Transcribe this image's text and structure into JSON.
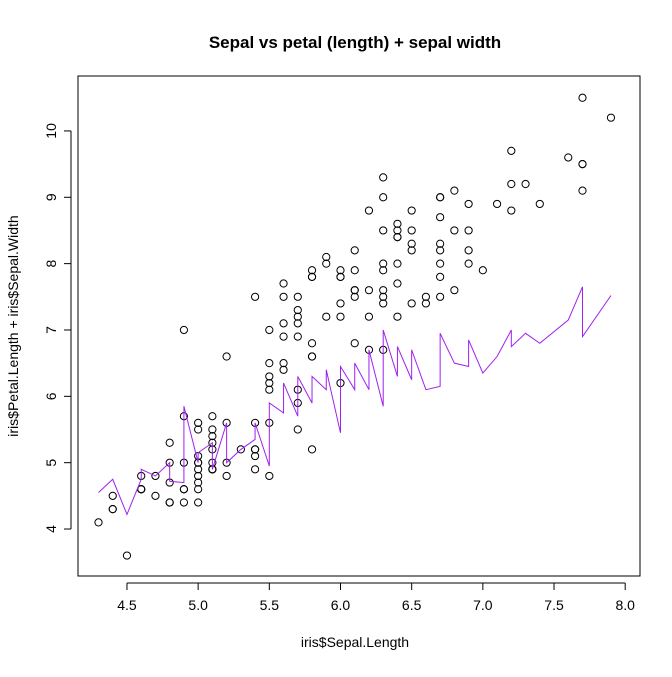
{
  "chart_data": {
    "type": "scatter",
    "title": "Sepal vs petal (length) + sepal width",
    "x_label": "iris$Sepal.Length",
    "y_label": "iris$Petal.Length + iris$Sepal.Width",
    "xlim": [
      4.156,
      8.104
    ],
    "ylim": [
      3.292,
      10.828
    ],
    "xticks": [
      4.5,
      {
        "value": 5,
        "label": "5.0"
      },
      5.5,
      {
        "value": 6,
        "label": "6.0"
      },
      6.5,
      {
        "value": 7,
        "label": "7.0"
      },
      7.5,
      {
        "value": 8,
        "label": "8.0"
      }
    ],
    "yticks": [
      4,
      5,
      6,
      7,
      8,
      9,
      10
    ],
    "series": [
      {
        "mark": "points",
        "color": "#000000",
        "x": [
          5.1,
          4.9,
          4.7,
          4.6,
          5.0,
          5.4,
          4.6,
          5.0,
          4.4,
          4.9,
          5.4,
          4.8,
          4.8,
          4.3,
          5.8,
          5.7,
          5.4,
          5.1,
          5.7,
          5.1,
          5.4,
          5.1,
          4.6,
          5.1,
          4.8,
          5.0,
          5.0,
          5.2,
          5.2,
          4.7,
          4.8,
          5.4,
          5.2,
          5.5,
          4.9,
          5.0,
          5.5,
          4.9,
          4.4,
          5.1,
          5.0,
          4.5,
          4.4,
          5.0,
          5.1,
          4.8,
          5.1,
          4.6,
          5.3,
          5.0,
          7.0,
          6.4,
          6.9,
          5.5,
          6.5,
          5.7,
          6.3,
          4.9,
          6.6,
          5.2,
          5.0,
          5.9,
          6.0,
          6.1,
          5.6,
          6.7,
          5.6,
          5.8,
          6.2,
          5.6,
          5.9,
          6.1,
          6.3,
          6.1,
          6.4,
          6.6,
          6.8,
          6.7,
          6.0,
          5.7,
          5.5,
          5.5,
          5.8,
          6.0,
          5.4,
          6.0,
          6.7,
          6.3,
          5.6,
          5.5,
          5.5,
          6.1,
          5.8,
          5.0,
          5.6,
          5.7,
          5.7,
          6.2,
          5.1,
          5.7,
          6.3,
          5.8,
          7.1,
          6.3,
          6.5,
          7.6,
          4.9,
          7.3,
          6.7,
          7.2,
          6.5,
          6.4,
          6.8,
          5.7,
          5.8,
          6.4,
          6.5,
          7.7,
          7.7,
          6.0,
          6.9,
          5.6,
          7.7,
          6.3,
          6.7,
          7.2,
          6.2,
          6.1,
          6.4,
          7.2,
          7.4,
          7.9,
          6.4,
          6.3,
          6.1,
          7.7,
          6.3,
          6.4,
          6.0,
          6.9,
          6.7,
          6.9,
          5.8,
          6.8,
          6.7,
          6.7,
          6.3,
          6.5,
          6.2,
          5.9
        ],
        "values": [
          4.9,
          4.4,
          4.5,
          4.6,
          5.0,
          5.6,
          4.8,
          4.9,
          4.3,
          4.6,
          5.2,
          5.0,
          4.4,
          4.1,
          5.2,
          5.9,
          5.2,
          4.9,
          5.5,
          5.3,
          5.1,
          5.2,
          4.6,
          5.0,
          5.3,
          4.6,
          5.0,
          5.0,
          4.8,
          4.8,
          4.7,
          4.9,
          5.6,
          5.6,
          4.6,
          4.4,
          4.8,
          5.0,
          4.3,
          4.9,
          4.8,
          3.6,
          4.5,
          5.1,
          5.7,
          4.4,
          5.4,
          4.6,
          5.2,
          4.7,
          7.9,
          7.7,
          8.0,
          6.3,
          7.4,
          7.3,
          8.0,
          5.7,
          7.5,
          6.6,
          5.5,
          7.2,
          6.2,
          7.6,
          6.5,
          7.5,
          7.5,
          6.8,
          6.7,
          6.4,
          8.0,
          6.8,
          7.4,
          7.5,
          7.2,
          7.4,
          7.6,
          8.0,
          7.4,
          6.1,
          6.2,
          6.1,
          6.6,
          7.8,
          7.5,
          7.9,
          7.8,
          6.7,
          7.1,
          6.5,
          7.0,
          7.6,
          6.6,
          5.6,
          6.9,
          7.2,
          7.1,
          7.2,
          5.5,
          6.9,
          9.3,
          7.8,
          8.9,
          8.5,
          8.8,
          9.6,
          7.0,
          9.2,
          8.3,
          9.7,
          8.3,
          8.0,
          8.5,
          7.5,
          7.9,
          8.5,
          8.5,
          10.5,
          9.5,
          7.2,
          8.9,
          7.7,
          9.5,
          7.6,
          9.0,
          9.2,
          7.6,
          7.9,
          8.4,
          8.8,
          8.9,
          10.2,
          8.4,
          7.9,
          8.2,
          9.1,
          9.0,
          8.6,
          7.8,
          8.5,
          8.7,
          8.2,
          7.8,
          9.1,
          9.0,
          8.2,
          7.5,
          8.2,
          8.8,
          8.1
        ]
      },
      {
        "mark": "line",
        "color": "#a020f0",
        "x": [
          4.3,
          4.4,
          4.5,
          4.6,
          4.6,
          4.7,
          4.8,
          4.8,
          4.9,
          4.9,
          5.0,
          5.0,
          5.1,
          5.1,
          5.2,
          5.2,
          5.3,
          5.4,
          5.4,
          5.5,
          5.5,
          5.6,
          5.6,
          5.7,
          5.7,
          5.8,
          5.8,
          5.9,
          5.9,
          6.0,
          6.0,
          6.1,
          6.1,
          6.2,
          6.2,
          6.3,
          6.3,
          6.4,
          6.4,
          6.5,
          6.5,
          6.6,
          6.7,
          6.7,
          6.8,
          6.9,
          6.9,
          7.0,
          7.1,
          7.2,
          7.2,
          7.3,
          7.4,
          7.6,
          7.7,
          7.7,
          7.9
        ],
        "values": [
          4.55,
          4.75,
          4.22,
          4.75,
          4.9,
          4.8,
          5.0,
          4.72,
          4.7,
          5.85,
          5.0,
          5.15,
          5.3,
          4.9,
          5.6,
          5.0,
          5.2,
          5.35,
          5.6,
          4.95,
          5.9,
          5.75,
          6.2,
          5.7,
          6.3,
          5.9,
          6.3,
          6.1,
          6.4,
          5.45,
          6.45,
          6.1,
          6.5,
          6.1,
          6.7,
          5.85,
          7.0,
          6.3,
          6.75,
          6.25,
          6.7,
          6.1,
          6.15,
          6.95,
          6.5,
          6.45,
          6.85,
          6.35,
          6.6,
          7.0,
          6.75,
          6.95,
          6.8,
          7.15,
          7.65,
          6.9,
          7.52
        ]
      }
    ]
  }
}
